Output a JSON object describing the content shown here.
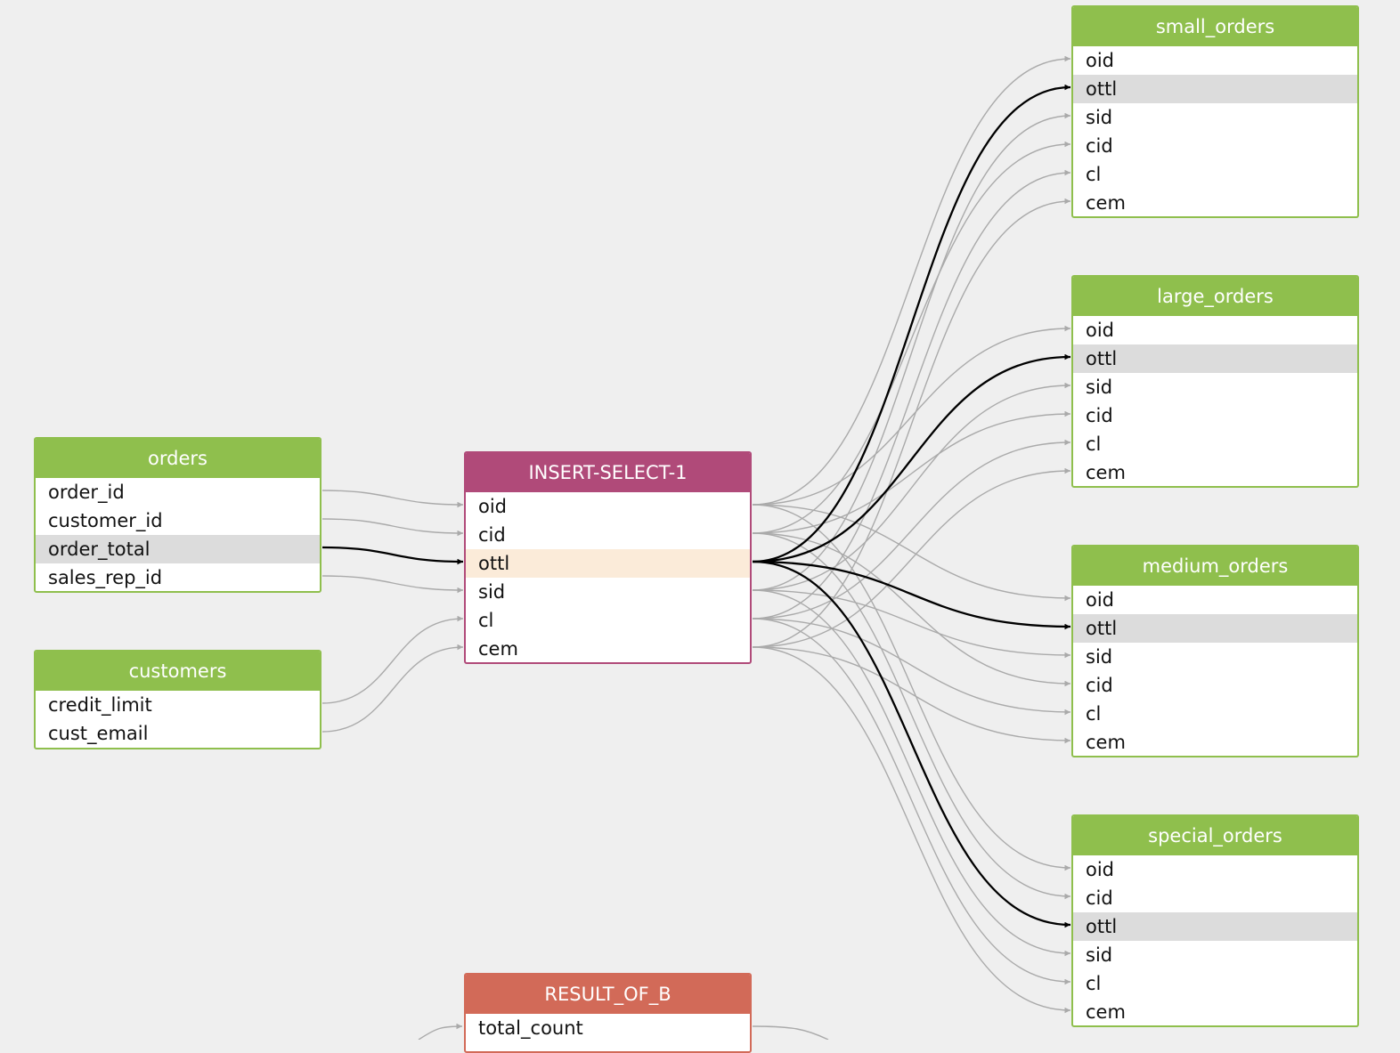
{
  "colors": {
    "background": "#efefef",
    "table_header": "#8fbf4d",
    "process_header": "#b04a79",
    "result_header": "#d26a58",
    "edge": "#aaaaaa",
    "edge_highlight": "#000000",
    "row_highlight": "#dcdcdc",
    "process_row_highlight": "#fbebd9"
  },
  "nodes": {
    "orders": {
      "title": "orders",
      "columns": [
        "order_id",
        "customer_id",
        "order_total",
        "sales_rep_id"
      ],
      "highlighted": "order_total"
    },
    "customers": {
      "title": "customers",
      "columns": [
        "credit_limit",
        "cust_email"
      ]
    },
    "insert_select": {
      "title": "INSERT-SELECT-1",
      "columns": [
        "oid",
        "cid",
        "ottl",
        "sid",
        "cl",
        "cem"
      ],
      "highlighted": "ottl"
    },
    "result_of_b": {
      "title": "RESULT_OF_B",
      "columns": [
        "total_count"
      ]
    },
    "small_orders": {
      "title": "small_orders",
      "columns": [
        "oid",
        "ottl",
        "sid",
        "cid",
        "cl",
        "cem"
      ],
      "highlighted": "ottl"
    },
    "large_orders": {
      "title": "large_orders",
      "columns": [
        "oid",
        "ottl",
        "sid",
        "cid",
        "cl",
        "cem"
      ],
      "highlighted": "ottl"
    },
    "medium_orders": {
      "title": "medium_orders",
      "columns": [
        "oid",
        "ottl",
        "sid",
        "cid",
        "cl",
        "cem"
      ],
      "highlighted": "ottl"
    },
    "special_orders": {
      "title": "special_orders",
      "columns": [
        "oid",
        "cid",
        "ottl",
        "sid",
        "cl",
        "cem"
      ],
      "highlighted": "ottl"
    }
  },
  "edges": [
    {
      "from": "orders.order_id",
      "to": "insert_select.oid"
    },
    {
      "from": "orders.customer_id",
      "to": "insert_select.cid"
    },
    {
      "from": "orders.order_total",
      "to": "insert_select.ottl",
      "highlighted": true
    },
    {
      "from": "orders.sales_rep_id",
      "to": "insert_select.sid"
    },
    {
      "from": "customers.credit_limit",
      "to": "insert_select.cl"
    },
    {
      "from": "customers.cust_email",
      "to": "insert_select.cem"
    },
    {
      "from": "insert_select.*",
      "to": "small_orders.*",
      "highlighted_column": "ottl"
    },
    {
      "from": "insert_select.*",
      "to": "large_orders.*",
      "highlighted_column": "ottl"
    },
    {
      "from": "insert_select.*",
      "to": "medium_orders.*",
      "highlighted_column": "ottl"
    },
    {
      "from": "insert_select.*",
      "to": "special_orders.*",
      "highlighted_column": "ottl"
    },
    {
      "from": "result_of_b.total_count",
      "to": "offscreen"
    }
  ]
}
